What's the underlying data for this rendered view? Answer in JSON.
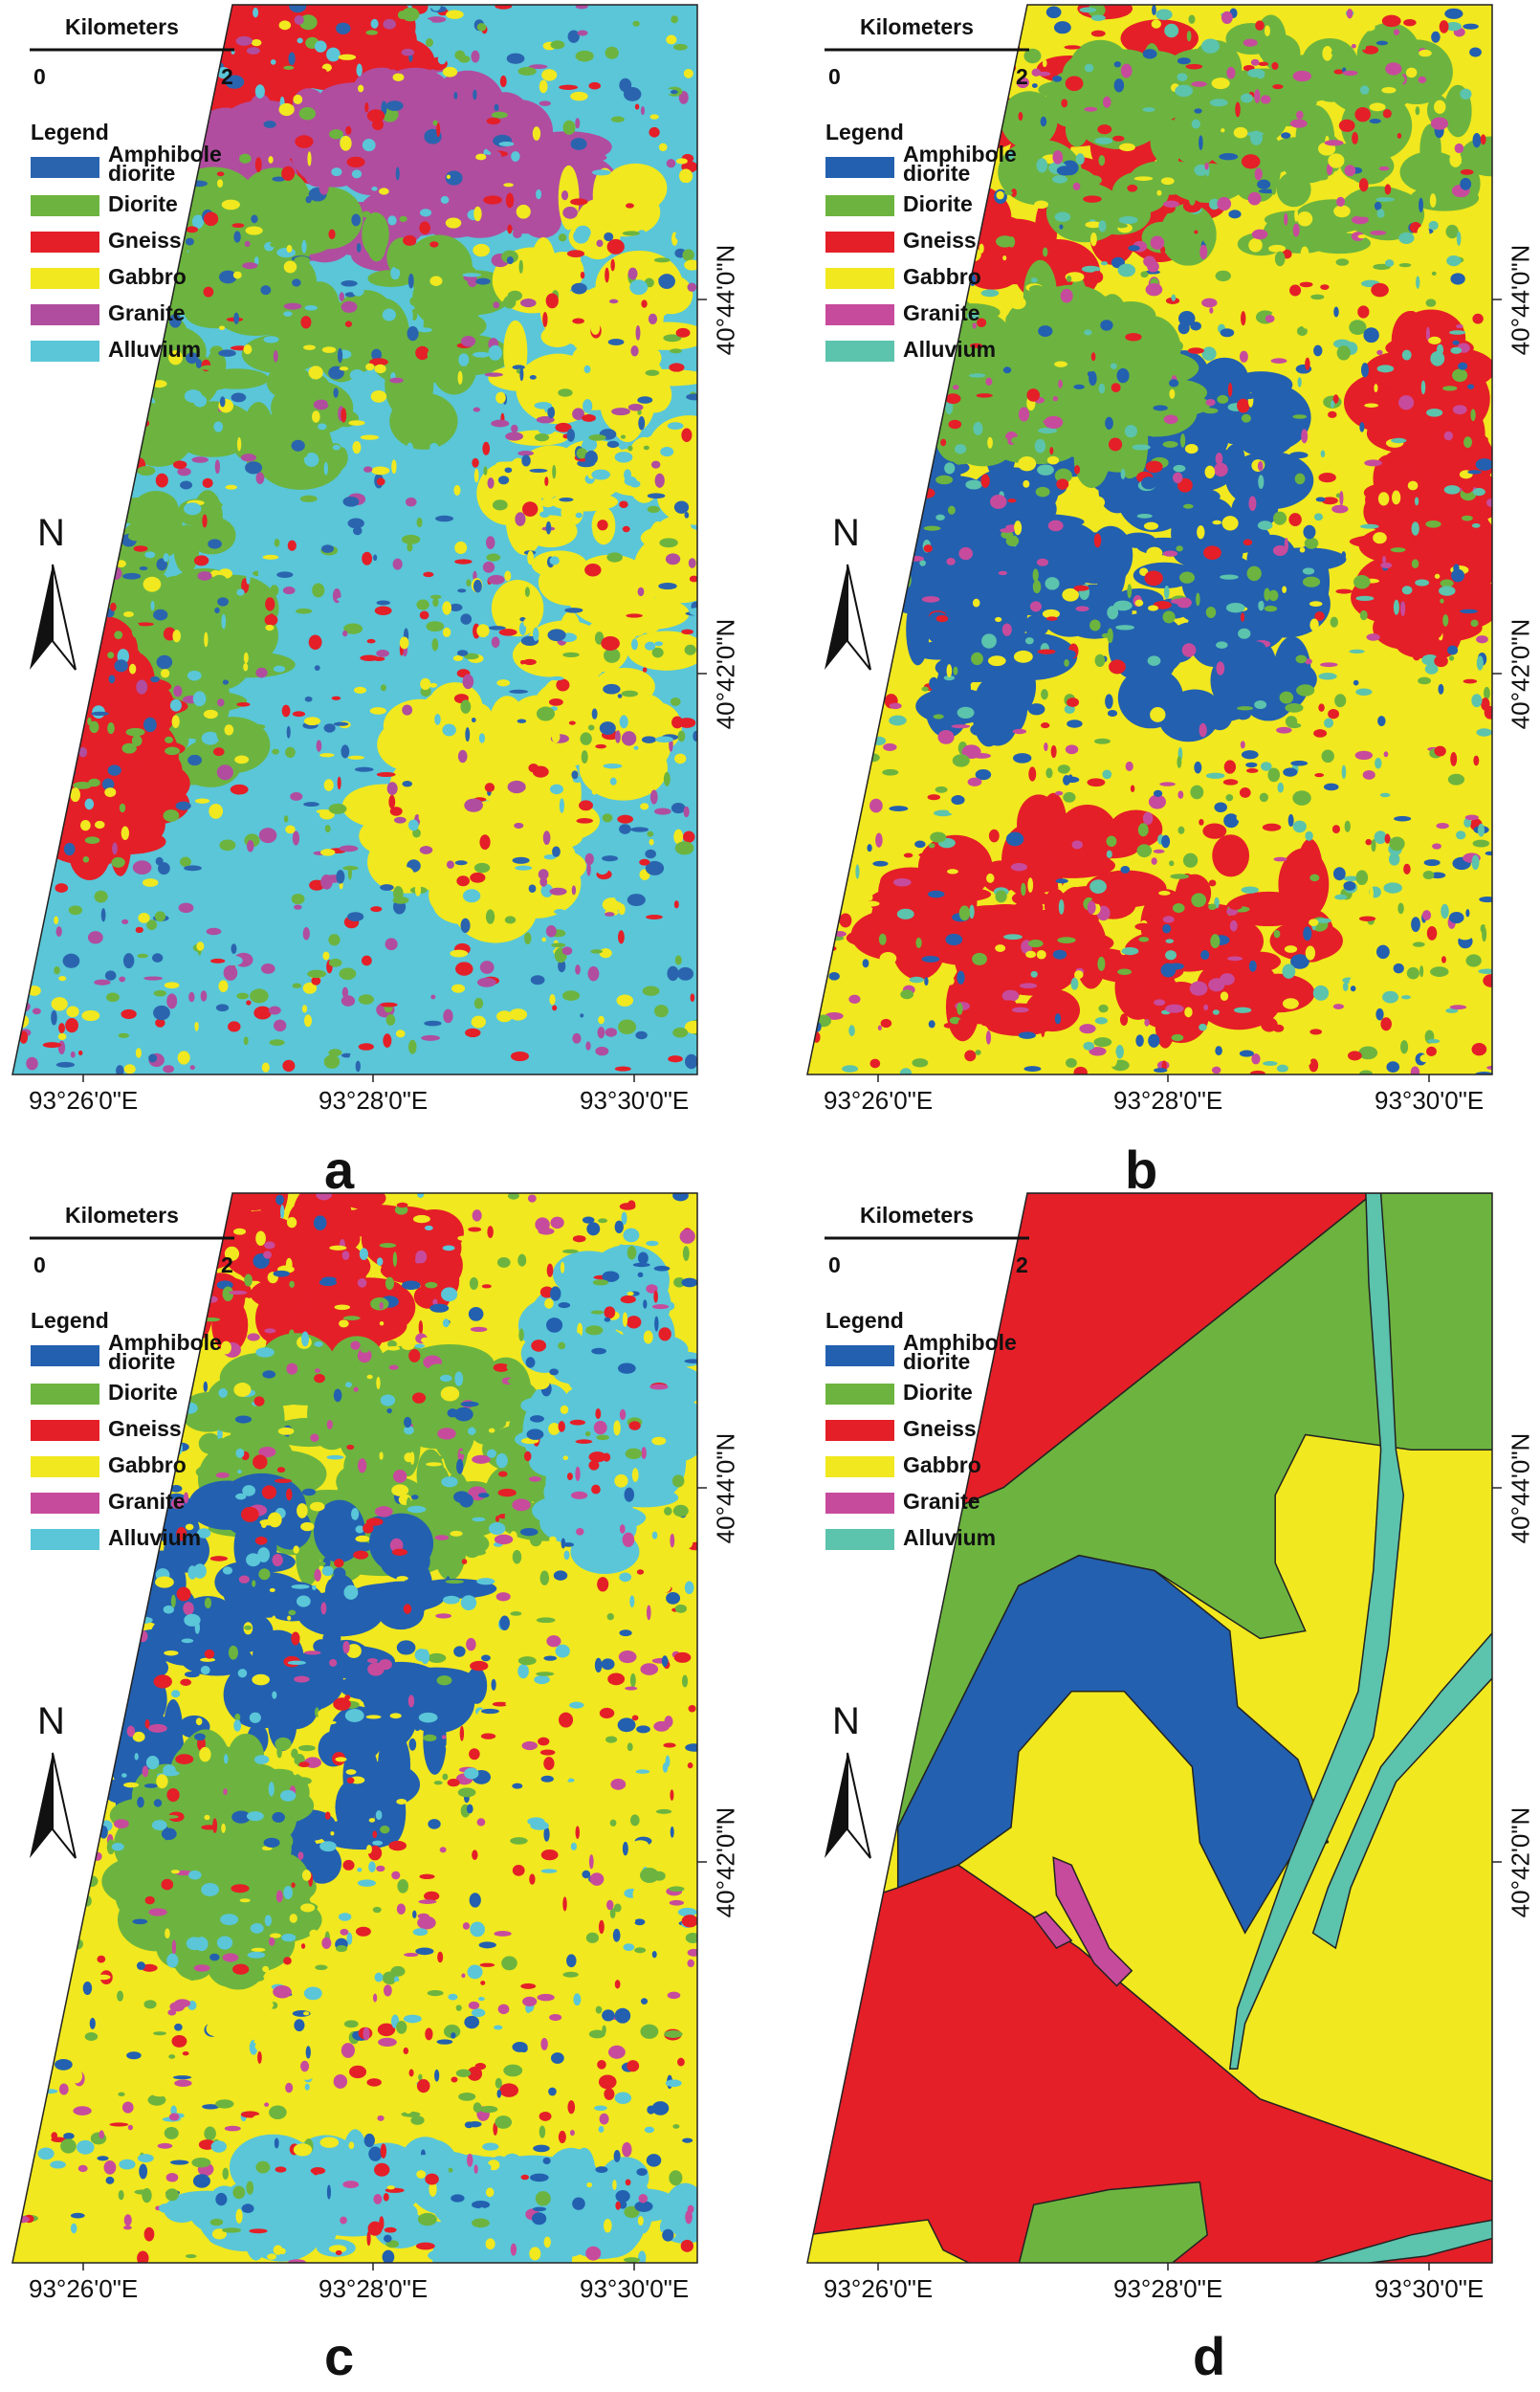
{
  "panels": [
    {
      "letter": "a",
      "scale": {
        "title": "Kilometers",
        "ticks": [
          0,
          2
        ]
      },
      "north": "N",
      "legend": {
        "title": "Legend",
        "items": [
          {
            "name": "Amphibole diorite",
            "color": "#2b64ae"
          },
          {
            "name": "Diorite",
            "color": "#6cb43f"
          },
          {
            "name": "Gneiss",
            "color": "#e41f28"
          },
          {
            "name": "Gabbro",
            "color": "#f1e81f"
          },
          {
            "name": "Granite",
            "color": "#b04d9f"
          },
          {
            "name": "Alluvium",
            "color": "#5ac6d8"
          }
        ]
      },
      "x_labels": [
        "93°26'0\"E",
        "93°28'0\"E",
        "93°30'0\"E"
      ],
      "y_labels": [
        "40°44'0\"N",
        "40°42'0\"N"
      ]
    },
    {
      "letter": "b",
      "scale": {
        "title": "Kilometers",
        "ticks": [
          0,
          2
        ]
      },
      "north": "N",
      "legend": {
        "title": "Legend",
        "items": [
          {
            "name": "Amphibole diorite",
            "color": "#2360b0"
          },
          {
            "name": "Diorite",
            "color": "#6cb43f"
          },
          {
            "name": "Gneiss",
            "color": "#e41f28"
          },
          {
            "name": "Gabbro",
            "color": "#f1e81f"
          },
          {
            "name": "Granite",
            "color": "#c74b9c"
          },
          {
            "name": "Alluvium",
            "color": "#5cc3ad"
          }
        ]
      },
      "x_labels": [
        "93°26'0\"E",
        "93°28'0\"E",
        "93°30'0\"E"
      ],
      "y_labels": [
        "40°44'0\"N",
        "40°42'0\"N"
      ]
    },
    {
      "letter": "c",
      "scale": {
        "title": "Kilometers",
        "ticks": [
          0,
          2
        ]
      },
      "north": "N",
      "legend": {
        "title": "Legend",
        "items": [
          {
            "name": "Amphibole diorite",
            "color": "#2360b0"
          },
          {
            "name": "Diorite",
            "color": "#6cb43f"
          },
          {
            "name": "Gneiss",
            "color": "#e41f28"
          },
          {
            "name": "Gabbro",
            "color": "#f1e81f"
          },
          {
            "name": "Granite",
            "color": "#c74b9c"
          },
          {
            "name": "Alluvium",
            "color": "#5ac6d8"
          }
        ]
      },
      "x_labels": [
        "93°26'0\"E",
        "93°28'0\"E",
        "93°30'0\"E"
      ],
      "y_labels": [
        "40°44'0\"N",
        "40°42'0\"N"
      ]
    },
    {
      "letter": "d",
      "scale": {
        "title": "Kilometers",
        "ticks": [
          0,
          2
        ]
      },
      "north": "N",
      "legend": {
        "title": "Legend",
        "items": [
          {
            "name": "Amphibole diorite",
            "color": "#2360b0"
          },
          {
            "name": "Diorite",
            "color": "#6cb43f"
          },
          {
            "name": "Gneiss",
            "color": "#e41f28"
          },
          {
            "name": "Gabbro",
            "color": "#f1e81f"
          },
          {
            "name": "Granite",
            "color": "#c74b9c"
          },
          {
            "name": "Alluvium",
            "color": "#5cc3ad"
          }
        ]
      },
      "x_labels": [
        "93°26'0\"E",
        "93°28'0\"E",
        "93°30'0\"E"
      ],
      "y_labels": [
        "40°44'0\"N",
        "40°42'0\"N"
      ]
    }
  ]
}
